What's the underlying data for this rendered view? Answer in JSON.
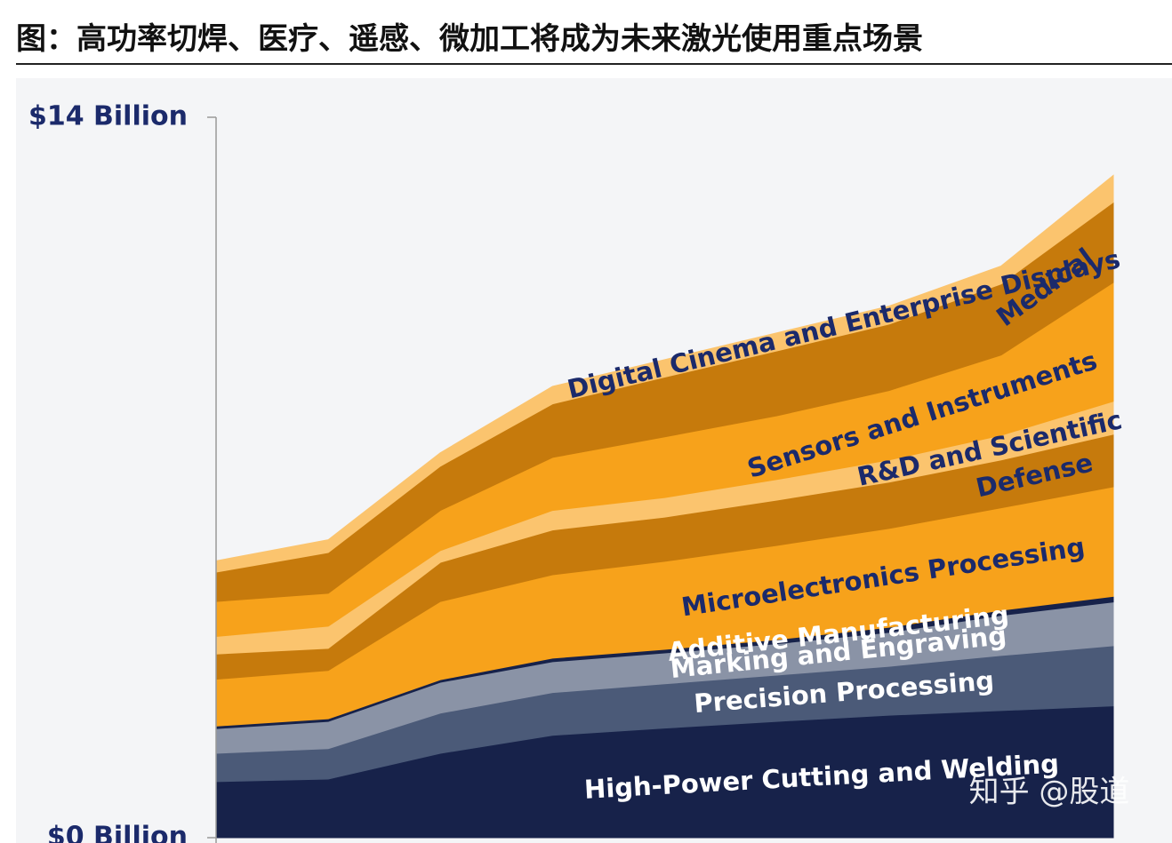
{
  "title": "图：高功率切焊、医疗、遥感、微加工将成为未来激光使用重点场景",
  "watermark": "知乎 @股道",
  "chart_data": {
    "type": "stacked_area",
    "categories": [
      null,
      null,
      null,
      null,
      null,
      null,
      null,
      null,
      null
    ],
    "ylim": [
      0,
      14
    ],
    "yticks": [
      {
        "value": 0,
        "label": "$0 Billion"
      },
      {
        "value": 14,
        "label": "$14 Billion"
      }
    ],
    "series": [
      {
        "name": "High-Power Cutting and Welding",
        "color": "#17224a",
        "values": [
          1.09,
          1.14,
          1.64,
          1.99,
          2.13,
          2.26,
          2.38,
          2.47,
          2.56
        ]
      },
      {
        "name": "Precision Processing",
        "color": "#4b5a78",
        "values": [
          0.55,
          0.59,
          0.78,
          0.83,
          0.86,
          0.9,
          0.95,
          1.07,
          1.17
        ]
      },
      {
        "name": "Marking and Engraving",
        "color": "#8a93a6",
        "values": [
          0.48,
          0.53,
          0.6,
          0.6,
          0.6,
          0.61,
          0.66,
          0.78,
          0.85
        ]
      },
      {
        "name": "Additive Manufacturing",
        "color": "#17224a",
        "values": [
          0.05,
          0.05,
          0.05,
          0.07,
          0.07,
          0.08,
          0.1,
          0.1,
          0.11
        ]
      },
      {
        "name": "Microelectronics Processing",
        "color": "#f7a21b",
        "values": [
          0.91,
          0.94,
          1.52,
          1.62,
          1.71,
          1.83,
          1.92,
          1.99,
          2.13
        ]
      },
      {
        "name": "Defense",
        "color": "#c67a0c",
        "values": [
          0.49,
          0.43,
          0.76,
          0.87,
          0.86,
          0.88,
          0.9,
          0.93,
          1.02
        ]
      },
      {
        "name": "R&D and Scientific",
        "color": "#fbc46e",
        "values": [
          0.34,
          0.43,
          0.23,
          0.38,
          0.38,
          0.4,
          0.43,
          0.48,
          0.64
        ]
      },
      {
        "name": "Sensors and Instruments",
        "color": "#f7a21b",
        "values": [
          0.68,
          0.64,
          0.78,
          1.03,
          1.18,
          1.24,
          1.35,
          1.56,
          2.31
        ]
      },
      {
        "name": "Medical",
        "color": "#c67a0c",
        "values": [
          0.57,
          0.79,
          0.86,
          1.04,
          1.16,
          1.26,
          1.29,
          1.38,
          1.56
        ]
      },
      {
        "name": "Digital Cinema and Enterprise Displays",
        "color": "#fbc46e",
        "values": [
          0.22,
          0.25,
          0.26,
          0.34,
          0.34,
          0.35,
          0.35,
          0.35,
          0.52
        ]
      }
    ]
  }
}
